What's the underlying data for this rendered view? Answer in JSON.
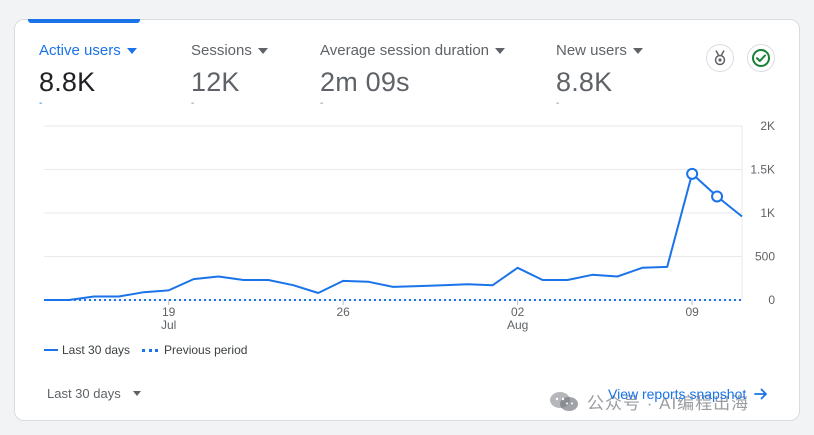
{
  "metrics": [
    {
      "label": "Active users",
      "value": "8.8K",
      "delta": "-",
      "active": true
    },
    {
      "label": "Sessions",
      "value": "12K",
      "delta": "-",
      "active": false
    },
    {
      "label": "Average session duration",
      "value": "2m 09s",
      "delta": "-",
      "active": false
    },
    {
      "label": "New users",
      "value": "8.8K",
      "delta": "-",
      "active": false
    }
  ],
  "icons": {
    "insights": "medal-insights-icon",
    "status": "check-circle-icon"
  },
  "colors": {
    "accent": "#1a73e8",
    "status_green": "#188038",
    "grid": "#e8eaed"
  },
  "legend": {
    "current": "Last 30 days",
    "previous": "Previous period"
  },
  "footer": {
    "range_label": "Last 30 days",
    "snapshot_label": "View reports snapshot"
  },
  "watermark": {
    "text": "公众号 · AI编程出海"
  },
  "chart_data": {
    "type": "line",
    "x_ticks": [
      {
        "index": 5,
        "day": "19",
        "month": "Jul"
      },
      {
        "index": 12,
        "day": "26",
        "month": ""
      },
      {
        "index": 19,
        "day": "02",
        "month": "Aug"
      },
      {
        "index": 26,
        "day": "09",
        "month": ""
      }
    ],
    "y_ticks": [
      "0",
      "500",
      "1K",
      "1.5K",
      "2K"
    ],
    "ylim": [
      0,
      2000
    ],
    "series": [
      {
        "name": "Last 30 days",
        "style": "solid",
        "values": [
          0,
          0,
          40,
          40,
          90,
          110,
          240,
          270,
          230,
          230,
          170,
          80,
          220,
          210,
          150,
          160,
          170,
          180,
          170,
          370,
          230,
          230,
          290,
          270,
          370,
          380,
          1450,
          1190,
          960
        ],
        "markers": [
          26,
          27
        ]
      },
      {
        "name": "Previous period",
        "style": "dotted",
        "values": [
          0,
          0,
          0,
          0,
          0,
          0,
          0,
          0,
          0,
          0,
          0,
          0,
          0,
          0,
          0,
          0,
          0,
          0,
          0,
          0,
          0,
          0,
          0,
          0,
          0,
          0,
          0,
          0,
          0
        ]
      }
    ]
  }
}
